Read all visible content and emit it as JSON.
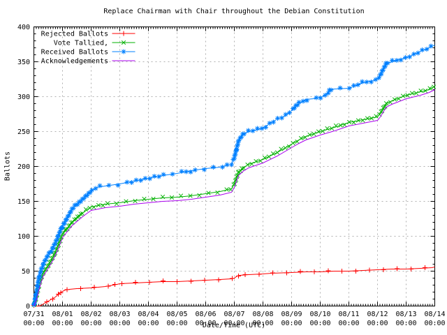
{
  "chart_data": {
    "type": "line",
    "title": "Replace Chairman with Chair throughout the Debian Constitution",
    "xlabel": "Date/Time (UTC)",
    "ylabel": "Ballots",
    "grid": true,
    "legend_position": "top-left",
    "colors": {
      "background": "#ffffff",
      "border": "#000000",
      "grid": "#b0b0b0",
      "text": "#000000"
    },
    "x_axis": {
      "days": 14,
      "tick_dates": [
        "07/31",
        "08/01",
        "08/02",
        "08/03",
        "08/04",
        "08/05",
        "08/06",
        "08/07",
        "08/08",
        "08/09",
        "08/10",
        "08/11",
        "08/12",
        "08/13",
        "08/14"
      ],
      "tick_time": "00:00",
      "minor_ticks_per_day": 12
    },
    "y_axis": {
      "min": 0,
      "max": 400,
      "major_step": 50,
      "minor_step": 10
    },
    "series": [
      {
        "name": "Rejected Ballots",
        "color": "#ff0000",
        "marker": "plus",
        "marker_density": "sparse",
        "jitter": 0.8,
        "points": [
          [
            0,
            0
          ],
          [
            0.18,
            0
          ],
          [
            0.25,
            1
          ],
          [
            0.33,
            3
          ],
          [
            0.42,
            5
          ],
          [
            0.5,
            7
          ],
          [
            0.58,
            9
          ],
          [
            0.67,
            11
          ],
          [
            0.75,
            13
          ],
          [
            0.83,
            16
          ],
          [
            0.92,
            19
          ],
          [
            1.0,
            21
          ],
          [
            1.1,
            23
          ],
          [
            1.25,
            24
          ],
          [
            1.5,
            25
          ],
          [
            2.0,
            26
          ],
          [
            2.5,
            28
          ],
          [
            2.9,
            31
          ],
          [
            3.0,
            32
          ],
          [
            3.5,
            33
          ],
          [
            4.0,
            34
          ],
          [
            4.5,
            35
          ],
          [
            5.0,
            35
          ],
          [
            5.5,
            36
          ],
          [
            6.0,
            37
          ],
          [
            6.5,
            38
          ],
          [
            6.9,
            39
          ],
          [
            7.0,
            40
          ],
          [
            7.1,
            43
          ],
          [
            7.2,
            44
          ],
          [
            7.5,
            45
          ],
          [
            8.0,
            46
          ],
          [
            8.3,
            47
          ],
          [
            9.0,
            48
          ],
          [
            9.5,
            49
          ],
          [
            10.0,
            49
          ],
          [
            10.5,
            50
          ],
          [
            11.0,
            50
          ],
          [
            11.5,
            51
          ],
          [
            12.0,
            52
          ],
          [
            12.5,
            53
          ],
          [
            13.0,
            53
          ],
          [
            13.5,
            54
          ],
          [
            13.9,
            55
          ],
          [
            14.0,
            56
          ]
        ]
      },
      {
        "name": "Vote Tallied,",
        "color": "#00b000",
        "marker": "cross",
        "marker_density": "dense",
        "jitter": 1.6,
        "points": [
          [
            0,
            0
          ],
          [
            0.08,
            12
          ],
          [
            0.17,
            28
          ],
          [
            0.25,
            40
          ],
          [
            0.33,
            48
          ],
          [
            0.5,
            58
          ],
          [
            0.67,
            70
          ],
          [
            0.83,
            85
          ],
          [
            1.0,
            103
          ],
          [
            1.17,
            112
          ],
          [
            1.33,
            120
          ],
          [
            1.5,
            126
          ],
          [
            1.67,
            132
          ],
          [
            1.83,
            137
          ],
          [
            2.0,
            142
          ],
          [
            2.5,
            146
          ],
          [
            3.0,
            148
          ],
          [
            3.5,
            151
          ],
          [
            4.0,
            153
          ],
          [
            4.5,
            155
          ],
          [
            5.0,
            156
          ],
          [
            5.5,
            158
          ],
          [
            6.0,
            161
          ],
          [
            6.5,
            164
          ],
          [
            6.9,
            168
          ],
          [
            7.0,
            175
          ],
          [
            7.15,
            192
          ],
          [
            7.3,
            198
          ],
          [
            7.5,
            203
          ],
          [
            8.0,
            210
          ],
          [
            8.5,
            220
          ],
          [
            9.0,
            232
          ],
          [
            9.25,
            238
          ],
          [
            9.5,
            243
          ],
          [
            10.0,
            250
          ],
          [
            10.5,
            256
          ],
          [
            11.0,
            263
          ],
          [
            11.5,
            267
          ],
          [
            12.0,
            271
          ],
          [
            12.1,
            276
          ],
          [
            12.3,
            290
          ],
          [
            12.5,
            294
          ],
          [
            13.0,
            302
          ],
          [
            13.5,
            307
          ],
          [
            13.8,
            310
          ],
          [
            14.0,
            315
          ]
        ]
      },
      {
        "name": "Received Ballots",
        "color": "#0080ff",
        "marker": "asterisk",
        "marker_density": "dense",
        "jitter": 1.8,
        "points": [
          [
            0,
            0
          ],
          [
            0.08,
            18
          ],
          [
            0.17,
            38
          ],
          [
            0.25,
            52
          ],
          [
            0.33,
            60
          ],
          [
            0.5,
            72
          ],
          [
            0.67,
            84
          ],
          [
            0.83,
            98
          ],
          [
            1.0,
            115
          ],
          [
            1.17,
            127
          ],
          [
            1.33,
            138
          ],
          [
            1.5,
            146
          ],
          [
            1.67,
            152
          ],
          [
            1.83,
            158
          ],
          [
            2.0,
            164
          ],
          [
            2.2,
            170
          ],
          [
            2.5,
            172
          ],
          [
            3.0,
            175
          ],
          [
            3.5,
            179
          ],
          [
            4.0,
            183
          ],
          [
            4.5,
            187
          ],
          [
            5.0,
            190
          ],
          [
            5.5,
            194
          ],
          [
            6.0,
            197
          ],
          [
            6.5,
            199
          ],
          [
            6.9,
            203
          ],
          [
            7.0,
            212
          ],
          [
            7.15,
            237
          ],
          [
            7.3,
            246
          ],
          [
            7.5,
            250
          ],
          [
            7.75,
            252
          ],
          [
            8.0,
            255
          ],
          [
            8.25,
            262
          ],
          [
            8.5,
            268
          ],
          [
            8.75,
            272
          ],
          [
            9.0,
            280
          ],
          [
            9.25,
            290
          ],
          [
            9.5,
            296
          ],
          [
            9.75,
            297
          ],
          [
            10.0,
            299
          ],
          [
            10.2,
            302
          ],
          [
            10.35,
            310
          ],
          [
            10.5,
            311
          ],
          [
            11.0,
            312
          ],
          [
            11.25,
            316
          ],
          [
            11.5,
            320
          ],
          [
            11.75,
            322
          ],
          [
            12.0,
            325
          ],
          [
            12.1,
            331
          ],
          [
            12.3,
            347
          ],
          [
            12.5,
            350
          ],
          [
            12.75,
            353
          ],
          [
            13.0,
            356
          ],
          [
            13.25,
            360
          ],
          [
            13.5,
            365
          ],
          [
            13.75,
            369
          ],
          [
            14.0,
            374
          ]
        ]
      },
      {
        "name": "Acknowledgements",
        "color": "#aa00ee",
        "marker": "none",
        "marker_density": "none",
        "jitter": 0,
        "points": [
          [
            0,
            0
          ],
          [
            0.08,
            8
          ],
          [
            0.17,
            22
          ],
          [
            0.25,
            34
          ],
          [
            0.33,
            43
          ],
          [
            0.5,
            54
          ],
          [
            0.67,
            66
          ],
          [
            0.83,
            80
          ],
          [
            1.0,
            98
          ],
          [
            1.17,
            107
          ],
          [
            1.33,
            115
          ],
          [
            1.5,
            121
          ],
          [
            1.67,
            127
          ],
          [
            1.83,
            132
          ],
          [
            2.0,
            137
          ],
          [
            2.5,
            141
          ],
          [
            3.0,
            143
          ],
          [
            3.5,
            146
          ],
          [
            4.0,
            148
          ],
          [
            4.5,
            150
          ],
          [
            5.0,
            151
          ],
          [
            5.5,
            153
          ],
          [
            6.0,
            156
          ],
          [
            6.5,
            159
          ],
          [
            6.9,
            163
          ],
          [
            7.0,
            170
          ],
          [
            7.15,
            187
          ],
          [
            7.3,
            193
          ],
          [
            7.5,
            198
          ],
          [
            8.0,
            205
          ],
          [
            8.5,
            215
          ],
          [
            9.0,
            227
          ],
          [
            9.25,
            233
          ],
          [
            9.5,
            238
          ],
          [
            10.0,
            245
          ],
          [
            10.5,
            251
          ],
          [
            11.0,
            258
          ],
          [
            11.5,
            262
          ],
          [
            12.0,
            266
          ],
          [
            12.1,
            271
          ],
          [
            12.3,
            285
          ],
          [
            12.5,
            289
          ],
          [
            13.0,
            297
          ],
          [
            13.5,
            302
          ],
          [
            13.8,
            306
          ],
          [
            14.0,
            310
          ]
        ]
      }
    ]
  }
}
